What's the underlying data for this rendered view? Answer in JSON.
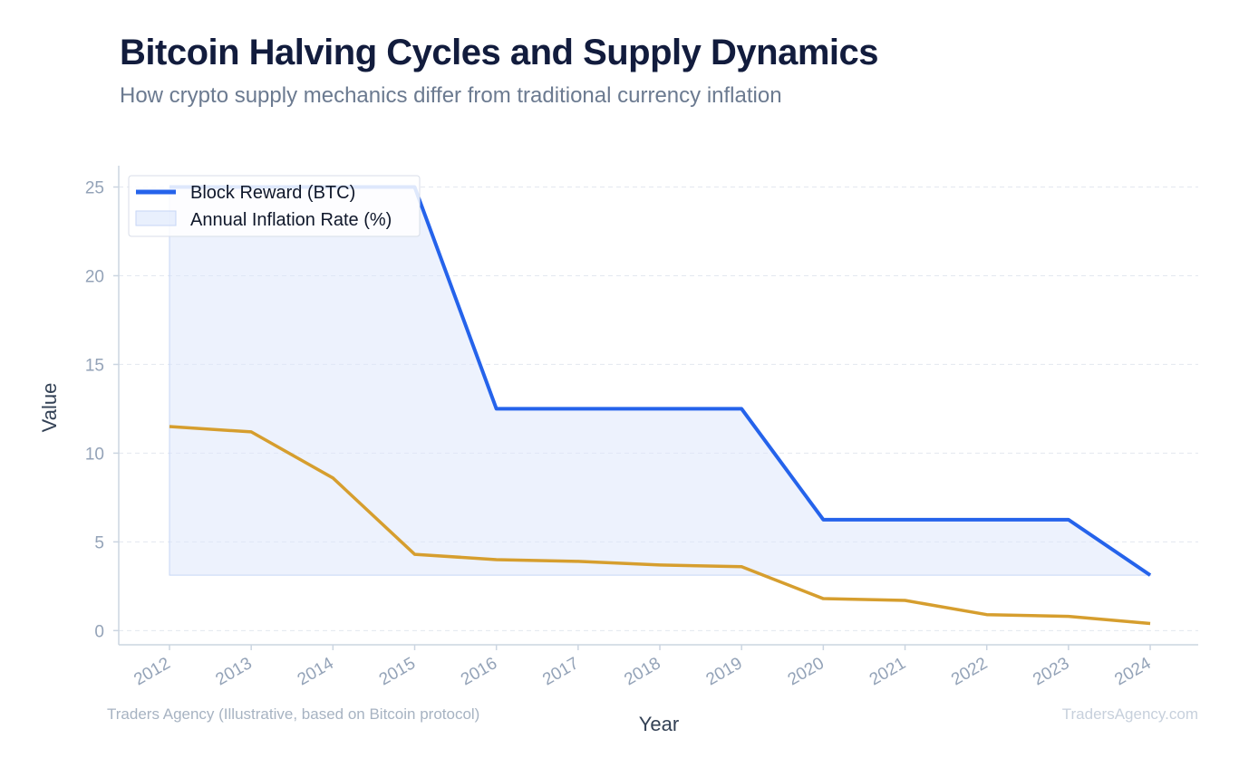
{
  "title": "Bitcoin Halving Cycles and Supply Dynamics",
  "subtitle": "How crypto supply mechanics differ from traditional currency inflation",
  "source_note": "Traders Agency (Illustrative, based on Bitcoin protocol)",
  "watermark": "TradersAgency.com",
  "colors": {
    "block_reward": "#2563eb",
    "inflation": "#d69e2e",
    "fill": "#dbe6fb"
  },
  "chart_data": {
    "type": "line",
    "title": "Bitcoin Halving Cycles and Supply Dynamics",
    "subtitle": "How crypto supply mechanics differ from traditional currency inflation",
    "xlabel": "Year",
    "ylabel": "Value",
    "x": [
      "2012",
      "2013",
      "2014",
      "2015",
      "2016",
      "2017",
      "2018",
      "2019",
      "2020",
      "2021",
      "2022",
      "2023",
      "2024"
    ],
    "ylim": [
      -0.8,
      26.2
    ],
    "yticks": [
      0,
      5,
      10,
      15,
      20,
      25
    ],
    "grid": true,
    "legend_position": "top-left",
    "series": [
      {
        "name": "Block Reward (BTC)",
        "style": "line",
        "values": [
          25,
          25,
          25,
          25,
          12.5,
          12.5,
          12.5,
          12.5,
          6.25,
          6.25,
          6.25,
          6.25,
          3.125
        ]
      },
      {
        "name": "Annual Inflation Rate (%)",
        "style": "line",
        "values": [
          11.5,
          11.2,
          8.6,
          4.3,
          4.0,
          3.9,
          3.7,
          3.6,
          1.8,
          1.7,
          0.9,
          0.8,
          0.4
        ]
      }
    ]
  }
}
